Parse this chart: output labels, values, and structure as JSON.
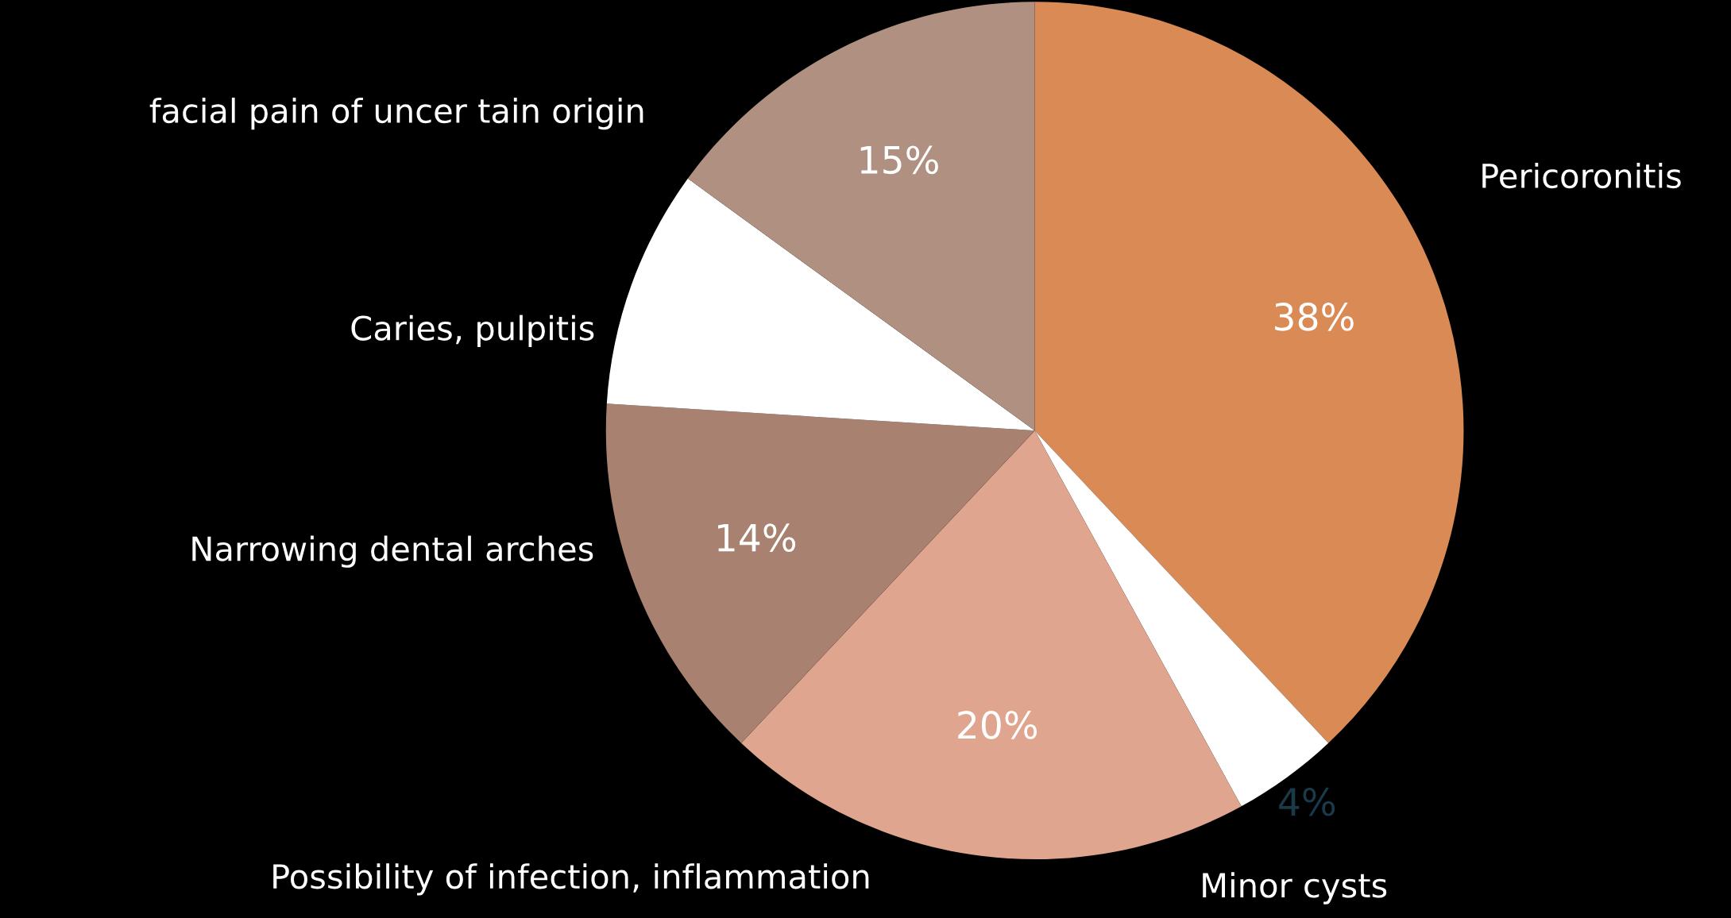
{
  "chart_data": {
    "type": "pie",
    "categories": [
      "Pericoronitis",
      "Minor cysts",
      "Possibility of infection, inflammation",
      "Narrowing dental arches",
      "Caries, pulpitis",
      "facial pain of uncer tain origin"
    ],
    "values": [
      38,
      4,
      20,
      14,
      9,
      15
    ],
    "value_labels": [
      "38%",
      "4%",
      "20%",
      "14%",
      null,
      "15%"
    ],
    "colors": [
      "#d98a55",
      "#ffffff",
      "#dfa58f",
      "#a88170",
      "#ffffff",
      "#b09080"
    ]
  }
}
